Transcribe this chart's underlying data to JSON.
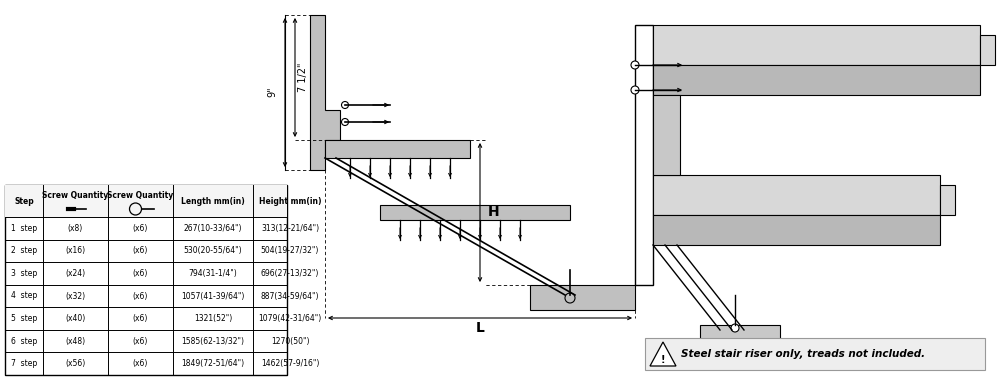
{
  "bg_color": "#ffffff",
  "table_data": {
    "rows": [
      [
        "1  step",
        "(x8)",
        "(x6)",
        "267(10-33/64\")",
        "313(12-21/64\")"
      ],
      [
        "2  step",
        "(x16)",
        "(x6)",
        "530(20-55/64\")",
        "504(19-27/32\")"
      ],
      [
        "3  step",
        "(x24)",
        "(x6)",
        "794(31-1/4\")",
        "696(27-13/32\")"
      ],
      [
        "4  step",
        "(x32)",
        "(x6)",
        "1057(41-39/64\")",
        "887(34-59/64\")"
      ],
      [
        "5  step",
        "(x40)",
        "(x6)",
        "1321(52\")",
        "1079(42-31/64\")"
      ],
      [
        "6  step",
        "(x48)",
        "(x6)",
        "1585(62-13/32\")",
        "1270(50\")"
      ],
      [
        "7  step",
        "(x56)",
        "(x6)",
        "1849(72-51/64\")",
        "1462(57-9/16\")"
      ]
    ]
  },
  "warning_text": "Steel stair riser only, treads not included.",
  "dim_9": "9\"",
  "dim_7half": "7 1/2\"",
  "dim_H": "H",
  "dim_L": "L"
}
